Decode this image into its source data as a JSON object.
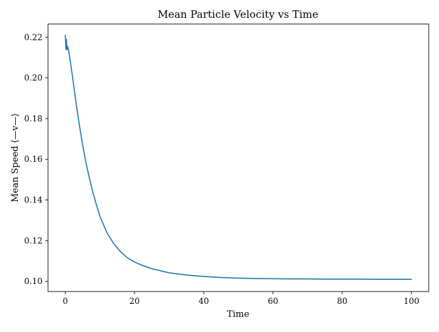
{
  "chart_data": {
    "type": "line",
    "title": "Mean Particle Velocity vs Time",
    "xlabel": "Time",
    "ylabel": "Mean Speed ⟨—v—⟩",
    "xlim": [
      -5,
      105
    ],
    "ylim": [
      0.095,
      0.2265
    ],
    "xticks": [
      0,
      20,
      40,
      60,
      80,
      100
    ],
    "xtick_labels": [
      "0",
      "20",
      "40",
      "60",
      "80",
      "100"
    ],
    "yticks": [
      0.1,
      0.12,
      0.14,
      0.16,
      0.18,
      0.2,
      0.22
    ],
    "ytick_labels": [
      "0.10",
      "0.12",
      "0.14",
      "0.16",
      "0.18",
      "0.20",
      "0.22"
    ],
    "grid": false,
    "legend": "none",
    "series": [
      {
        "color": "#1f77b4",
        "x": [
          0,
          0.1,
          0.2,
          0.3,
          0.4,
          0.5,
          0.6,
          0.7,
          0.8,
          0.9,
          1.0,
          1.5,
          2,
          3,
          4,
          5,
          6,
          7,
          8,
          9,
          10,
          12,
          14,
          16,
          18,
          20,
          22,
          25,
          28,
          30,
          35,
          40,
          45,
          50,
          55,
          60,
          65,
          70,
          75,
          80,
          85,
          90,
          95,
          100
        ],
        "y": [
          0.221,
          0.217,
          0.214,
          0.219,
          0.214,
          0.216,
          0.214,
          0.2145,
          0.215,
          0.2135,
          0.213,
          0.2075,
          0.2015,
          0.189,
          0.1775,
          0.167,
          0.158,
          0.1505,
          0.1435,
          0.1375,
          0.132,
          0.124,
          0.1185,
          0.1145,
          0.1115,
          0.1095,
          0.108,
          0.1062,
          0.105,
          0.1042,
          0.1031,
          0.1024,
          0.1019,
          0.1016,
          0.1014,
          0.1013,
          0.1012,
          0.1012,
          0.1011,
          0.1011,
          0.1011,
          0.101,
          0.101,
          0.101
        ]
      }
    ]
  }
}
